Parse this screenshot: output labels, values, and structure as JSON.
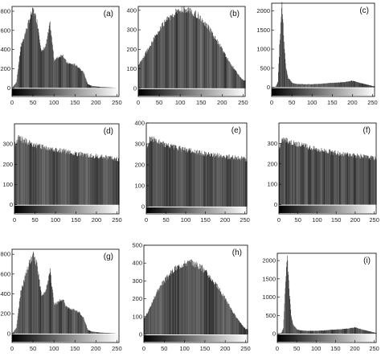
{
  "chart_data": [
    {
      "id": "a",
      "type": "bar",
      "label": "(a)",
      "xticks": [
        0,
        50,
        100,
        150,
        200,
        250
      ],
      "yticks": [
        0,
        200,
        400,
        600,
        800
      ],
      "ylim": [
        -90,
        850
      ],
      "xlim": [
        0,
        255
      ],
      "profile": "orig",
      "series": [
        {
          "x": [
            0,
            10,
            20,
            30,
            40,
            50,
            60,
            70,
            80,
            90,
            100,
            110,
            120,
            130,
            140,
            150,
            160,
            170,
            180,
            190,
            200,
            210,
            220,
            230,
            240,
            250
          ],
          "values": [
            0,
            60,
            420,
            560,
            700,
            820,
            680,
            370,
            440,
            670,
            290,
            320,
            350,
            260,
            250,
            240,
            210,
            160,
            40,
            20,
            15,
            10,
            8,
            5,
            3,
            0
          ]
        }
      ]
    },
    {
      "id": "b",
      "type": "bar",
      "label": "(b)",
      "xticks": [
        0,
        50,
        100,
        150,
        200,
        250
      ],
      "yticks": [
        0,
        100,
        200,
        300,
        400
      ],
      "ylim": [
        -42,
        420
      ],
      "xlim": [
        0,
        255
      ],
      "profile": "eq_mid",
      "series": [
        {
          "x": [
            0,
            10,
            20,
            30,
            40,
            50,
            60,
            70,
            80,
            90,
            100,
            110,
            120,
            130,
            140,
            150,
            160,
            170,
            180,
            190,
            200,
            210,
            220,
            230,
            240,
            250
          ],
          "values": [
            120,
            150,
            190,
            230,
            270,
            300,
            330,
            355,
            375,
            390,
            400,
            405,
            400,
            390,
            375,
            355,
            330,
            300,
            270,
            235,
            200,
            160,
            125,
            95,
            65,
            40
          ]
        }
      ]
    },
    {
      "id": "c",
      "type": "bar",
      "label": "(c)",
      "xticks": [
        0,
        50,
        100,
        150,
        200,
        250
      ],
      "yticks": [
        0,
        500,
        1000,
        1500,
        2000
      ],
      "ylim": [
        -240,
        2200
      ],
      "xlim": [
        0,
        255
      ],
      "profile": "spike",
      "series": [
        {
          "x": [
            0,
            10,
            15,
            20,
            25,
            30,
            35,
            40,
            50,
            60,
            80,
            100,
            120,
            140,
            160,
            180,
            200,
            220,
            240,
            255
          ],
          "values": [
            0,
            20,
            150,
            1300,
            2200,
            1200,
            500,
            250,
            120,
            90,
            80,
            80,
            90,
            110,
            120,
            140,
            170,
            110,
            60,
            20
          ]
        }
      ]
    },
    {
      "id": "d",
      "type": "bar",
      "label": "(d)",
      "xticks": [
        0,
        50,
        100,
        150,
        200,
        250
      ],
      "yticks": [
        0,
        100,
        200,
        300
      ],
      "ylim": [
        -45,
        400
      ],
      "xlim": [
        0,
        255
      ],
      "profile": "flat",
      "series": [
        {
          "x": [
            0,
            10,
            20,
            40,
            60,
            80,
            100,
            120,
            140,
            160,
            180,
            200,
            220,
            240,
            255
          ],
          "values": [
            300,
            330,
            320,
            300,
            290,
            280,
            270,
            265,
            255,
            250,
            245,
            240,
            235,
            230,
            225
          ]
        }
      ]
    },
    {
      "id": "e",
      "type": "bar",
      "label": "(e)",
      "xticks": [
        0,
        50,
        100,
        150,
        200,
        250
      ],
      "yticks": [
        0,
        100,
        200,
        300,
        400
      ],
      "ylim": [
        -35,
        400
      ],
      "xlim": [
        0,
        255
      ],
      "profile": "flat",
      "series": [
        {
          "x": [
            0,
            10,
            20,
            40,
            60,
            80,
            100,
            120,
            140,
            160,
            180,
            200,
            220,
            240,
            255
          ],
          "values": [
            280,
            330,
            320,
            300,
            290,
            280,
            270,
            265,
            255,
            250,
            245,
            240,
            235,
            230,
            225
          ]
        }
      ]
    },
    {
      "id": "f",
      "type": "bar",
      "label": "(f)",
      "xticks": [
        0,
        50,
        100,
        150,
        200,
        250
      ],
      "yticks": [
        0,
        100,
        200,
        300
      ],
      "ylim": [
        -45,
        400
      ],
      "xlim": [
        0,
        255
      ],
      "profile": "flat",
      "series": [
        {
          "x": [
            0,
            10,
            20,
            40,
            60,
            80,
            100,
            120,
            140,
            160,
            180,
            200,
            220,
            240,
            255
          ],
          "values": [
            280,
            320,
            315,
            300,
            290,
            280,
            270,
            265,
            255,
            250,
            245,
            240,
            235,
            230,
            225
          ]
        }
      ]
    },
    {
      "id": "g",
      "type": "bar",
      "label": "(g)",
      "xticks": [
        0,
        50,
        100,
        150,
        200,
        250
      ],
      "yticks": [
        0,
        200,
        400,
        600,
        800
      ],
      "ylim": [
        -90,
        850
      ],
      "xlim": [
        0,
        255
      ],
      "profile": "orig",
      "series": [
        {
          "x": [
            0,
            10,
            20,
            30,
            40,
            50,
            60,
            70,
            80,
            90,
            100,
            110,
            120,
            130,
            140,
            150,
            160,
            170,
            180,
            190,
            200,
            210,
            220,
            230,
            240,
            250
          ],
          "values": [
            0,
            60,
            420,
            560,
            700,
            790,
            680,
            370,
            440,
            640,
            290,
            320,
            350,
            260,
            250,
            240,
            210,
            160,
            40,
            20,
            15,
            10,
            8,
            5,
            3,
            0
          ]
        }
      ]
    },
    {
      "id": "h",
      "type": "bar",
      "label": "(h)",
      "xticks": [
        0,
        50,
        100,
        150,
        200,
        250
      ],
      "yticks": [
        0,
        100,
        200,
        300,
        400,
        500
      ],
      "ylim": [
        -45,
        500
      ],
      "xlim": [
        0,
        255
      ],
      "profile": "eq_mid",
      "series": [
        {
          "x": [
            0,
            10,
            20,
            30,
            40,
            50,
            60,
            70,
            80,
            90,
            100,
            110,
            120,
            130,
            140,
            150,
            160,
            170,
            180,
            190,
            200,
            210,
            220,
            230,
            240,
            250
          ],
          "values": [
            90,
            130,
            180,
            230,
            270,
            300,
            330,
            355,
            375,
            390,
            400,
            405,
            400,
            390,
            375,
            355,
            330,
            300,
            270,
            235,
            200,
            160,
            120,
            85,
            55,
            30
          ]
        }
      ]
    },
    {
      "id": "i",
      "type": "bar",
      "label": "(i)",
      "xticks": [
        0,
        50,
        100,
        150,
        200,
        250
      ],
      "yticks": [
        0,
        500,
        1000,
        1500,
        2000
      ],
      "ylim": [
        -240,
        2200
      ],
      "xlim": [
        0,
        255
      ],
      "profile": "spike",
      "series": [
        {
          "x": [
            0,
            10,
            15,
            20,
            25,
            30,
            35,
            40,
            50,
            60,
            80,
            100,
            120,
            140,
            160,
            180,
            200,
            220,
            240,
            255
          ],
          "values": [
            0,
            20,
            150,
            1300,
            2200,
            1200,
            500,
            250,
            120,
            90,
            80,
            80,
            90,
            110,
            120,
            140,
            170,
            110,
            60,
            20
          ]
        }
      ]
    }
  ]
}
